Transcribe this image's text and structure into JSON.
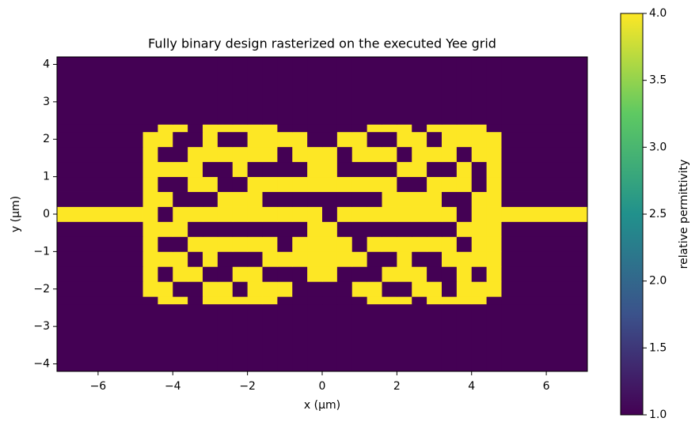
{
  "chart_data": {
    "type": "heatmap",
    "title": "Fully binary design rasterized on the executed Yee grid",
    "xlabel": "x (µm)",
    "ylabel": "y (µm)",
    "colorbar_label": "relative permittivity",
    "colormap": [
      "#440154",
      "#3b528b",
      "#21918c",
      "#5ec962",
      "#fde725"
    ],
    "x": [
      -7.1,
      -4.8,
      -4.4,
      -4.0,
      -3.6,
      -3.2,
      -2.8,
      -2.4,
      -2.0,
      -1.6,
      -1.2,
      -0.8,
      -0.4,
      0.0,
      0.4,
      0.8,
      1.2,
      1.6,
      2.0,
      2.4,
      2.8,
      3.2,
      3.6,
      4.0,
      4.4,
      4.8,
      7.1
    ],
    "y": [
      -4.2,
      -2.4,
      -2.2,
      -1.8,
      -1.4,
      -1.0,
      -0.6,
      -0.2,
      0.2,
      0.6,
      1.0,
      1.4,
      1.8,
      2.2,
      2.4,
      4.2
    ],
    "z": [
      [
        1,
        1,
        1,
        1,
        1,
        1,
        1,
        1,
        1,
        1,
        1,
        1,
        1,
        1,
        1,
        1,
        1,
        1,
        1,
        1,
        1,
        1,
        1,
        1,
        1,
        1
      ],
      [
        1,
        1,
        4,
        4,
        1,
        4,
        4,
        4,
        4,
        4,
        1,
        1,
        1,
        1,
        1,
        1,
        4,
        4,
        4,
        1,
        4,
        4,
        4,
        4,
        1,
        1
      ],
      [
        1,
        4,
        4,
        1,
        1,
        4,
        4,
        1,
        4,
        4,
        4,
        1,
        1,
        1,
        1,
        4,
        4,
        1,
        1,
        4,
        4,
        1,
        4,
        4,
        4,
        1
      ],
      [
        1,
        4,
        1,
        4,
        4,
        1,
        1,
        4,
        4,
        1,
        1,
        1,
        4,
        4,
        1,
        1,
        1,
        4,
        4,
        4,
        1,
        1,
        4,
        1,
        4,
        1
      ],
      [
        1,
        4,
        4,
        4,
        1,
        4,
        1,
        1,
        1,
        4,
        4,
        4,
        4,
        4,
        4,
        4,
        1,
        1,
        4,
        1,
        1,
        4,
        4,
        4,
        4,
        1
      ],
      [
        1,
        4,
        1,
        1,
        4,
        4,
        4,
        4,
        4,
        4,
        1,
        4,
        4,
        4,
        4,
        1,
        4,
        4,
        4,
        4,
        4,
        4,
        1,
        4,
        4,
        1
      ],
      [
        1,
        4,
        4,
        4,
        1,
        1,
        1,
        1,
        1,
        1,
        1,
        1,
        4,
        4,
        1,
        1,
        1,
        1,
        1,
        1,
        1,
        1,
        4,
        4,
        4,
        1
      ],
      [
        4,
        4,
        1,
        4,
        4,
        4,
        4,
        4,
        4,
        4,
        4,
        4,
        4,
        1,
        4,
        4,
        4,
        4,
        4,
        4,
        4,
        4,
        1,
        4,
        4,
        4
      ],
      [
        1,
        4,
        4,
        1,
        1,
        1,
        4,
        4,
        4,
        1,
        1,
        1,
        1,
        1,
        1,
        1,
        1,
        4,
        4,
        4,
        4,
        1,
        1,
        4,
        4,
        1
      ],
      [
        1,
        4,
        1,
        1,
        4,
        4,
        1,
        1,
        4,
        4,
        4,
        4,
        4,
        4,
        4,
        4,
        4,
        4,
        1,
        1,
        4,
        4,
        4,
        1,
        4,
        1
      ],
      [
        1,
        4,
        4,
        4,
        4,
        1,
        1,
        4,
        1,
        1,
        1,
        1,
        4,
        4,
        1,
        1,
        1,
        1,
        4,
        4,
        1,
        1,
        4,
        1,
        4,
        1
      ],
      [
        1,
        4,
        1,
        1,
        4,
        4,
        4,
        4,
        4,
        4,
        1,
        4,
        4,
        4,
        1,
        4,
        4,
        4,
        1,
        4,
        4,
        4,
        1,
        4,
        4,
        1
      ],
      [
        1,
        4,
        4,
        1,
        1,
        4,
        1,
        1,
        4,
        4,
        4,
        4,
        1,
        1,
        4,
        4,
        1,
        1,
        4,
        4,
        1,
        4,
        4,
        4,
        4,
        1
      ],
      [
        1,
        1,
        4,
        4,
        1,
        4,
        4,
        4,
        4,
        4,
        1,
        1,
        1,
        1,
        1,
        1,
        4,
        4,
        4,
        1,
        4,
        4,
        4,
        4,
        1,
        1
      ],
      [
        1,
        1,
        1,
        1,
        1,
        1,
        1,
        1,
        1,
        1,
        1,
        1,
        1,
        1,
        1,
        1,
        1,
        1,
        1,
        1,
        1,
        1,
        1,
        1,
        1,
        1
      ]
    ],
    "xlim": [
      -7.1,
      7.1
    ],
    "ylim": [
      -4.2,
      4.2
    ],
    "clim": [
      1,
      4
    ],
    "xticks": [
      {
        "value": -6,
        "label": "−6"
      },
      {
        "value": -4,
        "label": "−4"
      },
      {
        "value": -2,
        "label": "−2"
      },
      0,
      2,
      4,
      6
    ],
    "yticks": [
      {
        "value": -4,
        "label": "−4"
      },
      {
        "value": -3,
        "label": "−3"
      },
      {
        "value": -2,
        "label": "−2"
      },
      {
        "value": -1,
        "label": "−1"
      },
      0,
      1,
      2,
      3,
      4
    ],
    "cticks": [
      {
        "value": 1,
        "label": "1.0"
      },
      {
        "value": 1.5,
        "label": "1.5"
      },
      {
        "value": 2,
        "label": "2.0"
      },
      {
        "value": 2.5,
        "label": "2.5"
      },
      {
        "value": 3,
        "label": "3.0"
      },
      {
        "value": 3.5,
        "label": "3.5"
      },
      {
        "value": 4,
        "label": "4.0"
      }
    ]
  }
}
